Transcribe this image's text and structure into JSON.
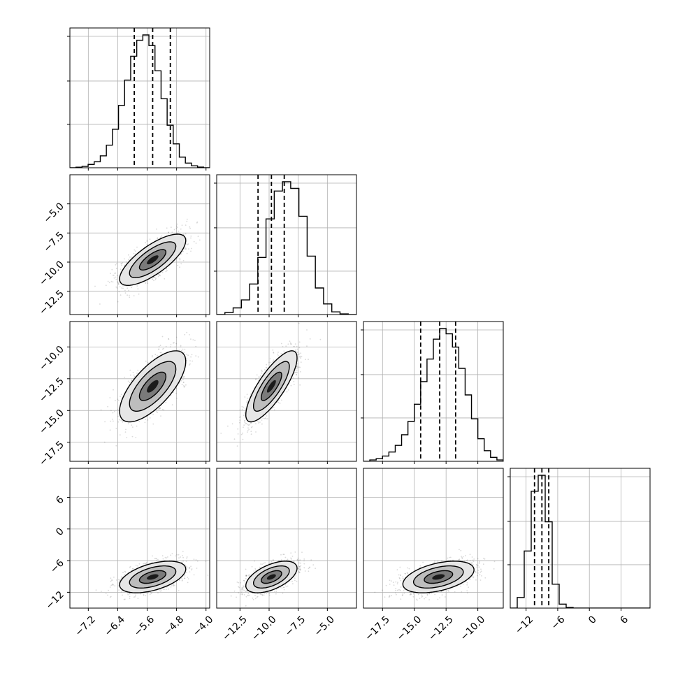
{
  "chart_data": {
    "type": "corner",
    "n_params": 4,
    "quantile_lines": {
      "style": "dashed",
      "color": "#000000",
      "count": 3
    },
    "grid": true,
    "colors": {
      "line": "#000000",
      "grid": "#b0b0b0",
      "scatter": "#555555",
      "fill_dark": "#000000"
    },
    "params": [
      {
        "range": [
          -7.7,
          -3.9
        ],
        "ticks": [
          -7.2,
          -6.4,
          -5.6,
          -4.8,
          -4.0
        ],
        "tick_labels": [
          "−7.2",
          "−6.4",
          "−5.6",
          "−4.8",
          "−4.0"
        ],
        "median": -5.45,
        "q_lo": -5.95,
        "q_hi": -4.97,
        "mean": -5.45,
        "sd": 0.45,
        "hist_bins": [
          0,
          0.004,
          0.01,
          0.025,
          0.045,
          0.09,
          0.17,
          0.29,
          0.47,
          0.66,
          0.84,
          0.96,
          1.0,
          0.92,
          0.73,
          0.52,
          0.32,
          0.18,
          0.08,
          0.035,
          0.015,
          0.005,
          0
        ]
      },
      {
        "range": [
          -14.5,
          -2.5
        ],
        "ticks": [
          -12.5,
          -10.0,
          -7.5,
          -5.0
        ],
        "tick_labels": [
          "−12.5",
          "−10.0",
          "−7.5",
          "−5.0"
        ],
        "median": -9.8,
        "q_lo": -10.95,
        "q_hi": -8.7,
        "mean": -9.8,
        "sd": 1.1,
        "hist_bins": [
          0,
          0.015,
          0.05,
          0.11,
          0.23,
          0.43,
          0.72,
          0.93,
          1.0,
          0.95,
          0.74,
          0.44,
          0.2,
          0.08,
          0.02,
          0.005,
          0
        ]
      },
      {
        "range": [
          -19.0,
          -8.0
        ],
        "ticks": [
          -17.5,
          -15.0,
          -12.5,
          -10.0
        ],
        "tick_labels": [
          "−17.5",
          "−15.0",
          "−12.5",
          "−10.0"
        ],
        "median": -13.0,
        "q_lo": -14.5,
        "q_hi": -11.75,
        "mean": -13.1,
        "sd": 1.4,
        "hist_bins": [
          0,
          0.01,
          0.02,
          0.04,
          0.07,
          0.12,
          0.2,
          0.3,
          0.43,
          0.6,
          0.77,
          0.92,
          1.0,
          0.96,
          0.86,
          0.7,
          0.5,
          0.32,
          0.17,
          0.08,
          0.03,
          0.01
        ]
      },
      {
        "range": [
          -15.0,
          11.5
        ],
        "ticks": [
          -12,
          -6,
          0,
          6
        ],
        "tick_labels": [
          "−12",
          "−6",
          "0",
          "6"
        ],
        "median": -9.0,
        "q_lo": -10.4,
        "q_hi": -7.7,
        "mean": -9.1,
        "sd": 1.5,
        "hist_bins": [
          0,
          0.08,
          0.43,
          0.88,
          1.0,
          0.65,
          0.18,
          0.03,
          0.005,
          0,
          0,
          0,
          0,
          0,
          0,
          0,
          0,
          0,
          0,
          0
        ]
      }
    ],
    "correlations": {
      "1-0": 0.75,
      "2-0": 0.7,
      "2-1": 0.8,
      "3-0": 0.5,
      "3-1": 0.55,
      "3-2": 0.45
    }
  }
}
